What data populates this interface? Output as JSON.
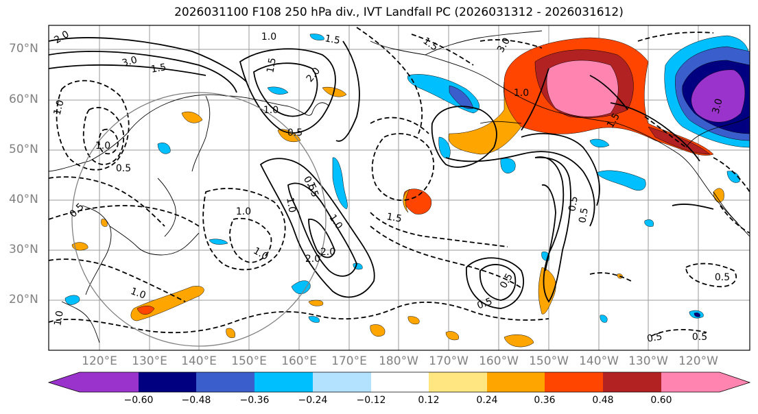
{
  "title": "2026031100 F108 250 hPa div., IVT Landfall PC (2026031312 - 2026031612)",
  "lat_labels": [
    "70°N",
    "60°N",
    "50°N",
    "40°N",
    "30°N",
    "20°N"
  ],
  "lon_labels": [
    "120°E",
    "130°E",
    "140°E",
    "150°E",
    "160°E",
    "170°E",
    "180°W",
    "170°W",
    "160°W",
    "150°W",
    "140°W",
    "130°W",
    "120°W"
  ],
  "colorbar": {
    "ticks": [
      "−0.60",
      "−0.48",
      "−0.36",
      "−0.24",
      "−0.12",
      "0.12",
      "0.24",
      "0.36",
      "0.48",
      "0.60"
    ],
    "colors": [
      "#9933cc",
      "#000080",
      "#3a5fcd",
      "#00bfff",
      "#b2e2ff",
      "#ffffff",
      "#ffe680",
      "#ffa500",
      "#ff4500",
      "#b22222",
      "#ff85b0"
    ]
  },
  "contour_labels": [
    "3.0",
    "1.5",
    "2.0",
    "1.0",
    "0.5",
    "1.0",
    "2.0",
    "1.5",
    "1.5",
    "3.0",
    "1.0",
    "1.0",
    "1.0",
    "1.5",
    "1.0",
    "0.5",
    "0.5",
    "1.0",
    "3.0",
    "1.5",
    "0.5",
    "2.0",
    "0.5",
    "0.5",
    "0.5",
    "0.5",
    "1.0",
    "1.0",
    "2.0",
    "0.5",
    "1.5",
    "1.5",
    "1.0",
    "1.0",
    "0.5",
    "0.5"
  ]
}
